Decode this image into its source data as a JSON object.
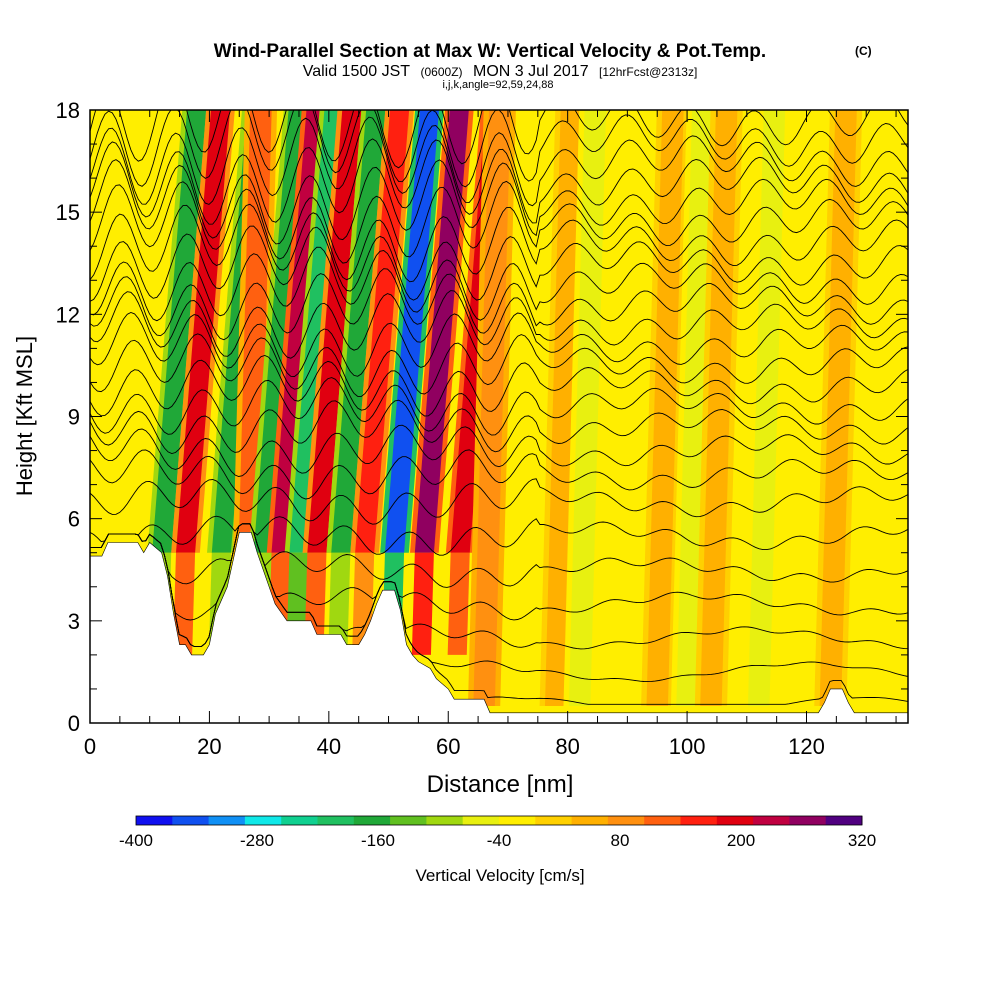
{
  "chart_data": {
    "type": "heatmap",
    "title": "Wind-Parallel Section at Max W: Vertical Velocity & Pot.Temp.",
    "title_mark": "(C)",
    "subtitle_parts": [
      "Valid 1500 JST",
      "(0600Z)",
      "MON 3 Jul 2017",
      "[12hrFcst@2313z]"
    ],
    "subtitle2": "i,j,k,angle=92,59,24,88",
    "xlabel": "Distance [nm]",
    "ylabel": "Height [Kft MSL]",
    "xlim": [
      0,
      137
    ],
    "ylim": [
      0,
      18
    ],
    "x_ticks": [
      0,
      20,
      40,
      60,
      80,
      100,
      120
    ],
    "y_ticks": [
      0,
      3,
      6,
      9,
      12,
      15,
      18
    ],
    "colorbar": {
      "label": "Vertical Velocity [cm/s]",
      "range": [
        -400,
        320
      ],
      "tick_values": [
        -400,
        -280,
        -160,
        -40,
        80,
        200,
        320
      ],
      "tick_labels": [
        "-400",
        "-280",
        "-160",
        "-40",
        "80",
        "200",
        "320"
      ],
      "colors": [
        "#1010f0",
        "#1050f0",
        "#1090f5",
        "#10e8e8",
        "#10d090",
        "#20c060",
        "#20a838",
        "#60c020",
        "#a0d810",
        "#e8f010",
        "#ffee00",
        "#ffd000",
        "#ffb000",
        "#ff9010",
        "#ff6010",
        "#ff2010",
        "#e00010",
        "#c00040",
        "#900060",
        "#500080"
      ]
    },
    "vertical_velocity_bands": [
      {
        "x": 12,
        "value": -180
      },
      {
        "x": 16,
        "value": 180
      },
      {
        "x": 22,
        "value": -150
      },
      {
        "x": 26,
        "value": 120
      },
      {
        "x": 29,
        "value": -160
      },
      {
        "x": 32,
        "value": 220
      },
      {
        "x": 35,
        "value": -200
      },
      {
        "x": 38,
        "value": 180
      },
      {
        "x": 42,
        "value": -160
      },
      {
        "x": 46,
        "value": 150
      },
      {
        "x": 51,
        "value": -360
      },
      {
        "x": 56,
        "value": 250
      },
      {
        "x": 62,
        "value": 200
      },
      {
        "x": 66,
        "value": 100
      },
      {
        "x": 78,
        "value": 40
      },
      {
        "x": 82,
        "value": -60
      },
      {
        "x": 95,
        "value": 50
      },
      {
        "x": 100,
        "value": -50
      },
      {
        "x": 104,
        "value": 50
      },
      {
        "x": 112,
        "value": -50
      },
      {
        "x": 124,
        "value": 40
      }
    ],
    "terrain": [
      [
        0,
        4.9
      ],
      [
        2,
        4.9
      ],
      [
        3,
        5.3
      ],
      [
        8,
        5.3
      ],
      [
        9,
        5.0
      ],
      [
        10,
        5.3
      ],
      [
        12,
        5.0
      ],
      [
        13,
        4.3
      ],
      [
        14,
        3.2
      ],
      [
        15,
        2.3
      ],
      [
        16,
        2.3
      ],
      [
        17,
        2.0
      ],
      [
        19,
        2.0
      ],
      [
        20,
        2.3
      ],
      [
        21,
        3.2
      ],
      [
        23,
        4.0
      ],
      [
        25,
        5.6
      ],
      [
        27,
        5.6
      ],
      [
        28,
        5.0
      ],
      [
        30,
        4.0
      ],
      [
        31,
        3.5
      ],
      [
        33,
        3.0
      ],
      [
        37,
        3.0
      ],
      [
        38,
        2.6
      ],
      [
        42,
        2.6
      ],
      [
        43,
        2.3
      ],
      [
        45,
        2.3
      ],
      [
        46,
        2.6
      ],
      [
        47,
        3.0
      ],
      [
        48,
        3.5
      ],
      [
        49,
        3.9
      ],
      [
        51,
        3.9
      ],
      [
        52,
        3.3
      ],
      [
        53,
        2.3
      ],
      [
        54,
        2.0
      ],
      [
        55,
        1.8
      ],
      [
        57,
        1.6
      ],
      [
        58,
        1.3
      ],
      [
        60,
        1.0
      ],
      [
        61,
        0.7
      ],
      [
        66,
        0.7
      ],
      [
        67,
        0.3
      ],
      [
        122,
        0.3
      ],
      [
        123,
        0.6
      ],
      [
        124,
        1.0
      ],
      [
        126,
        1.0
      ],
      [
        127,
        0.6
      ],
      [
        128,
        0.3
      ],
      [
        137,
        0.3
      ]
    ],
    "isentropes": [
      {
        "level": 0.5
      },
      {
        "level": 1.5
      },
      {
        "level": 2.5
      },
      {
        "level": 3.5
      },
      {
        "level": 4.5
      },
      {
        "level": 5.5
      },
      {
        "level": 6.5
      },
      {
        "level": 7.3
      },
      {
        "level": 8.0
      },
      {
        "level": 8.7
      },
      {
        "level": 9.3
      },
      {
        "level": 9.9
      },
      {
        "level": 10.5
      },
      {
        "level": 11.1
      },
      {
        "level": 11.7
      },
      {
        "level": 12.3
      },
      {
        "level": 12.9
      },
      {
        "level": 13.5
      },
      {
        "level": 14.1
      },
      {
        "level": 14.7
      },
      {
        "level": 15.3
      },
      {
        "level": 15.9
      },
      {
        "level": 16.5
      },
      {
        "level": 17.1
      },
      {
        "level": 17.7
      }
    ]
  }
}
